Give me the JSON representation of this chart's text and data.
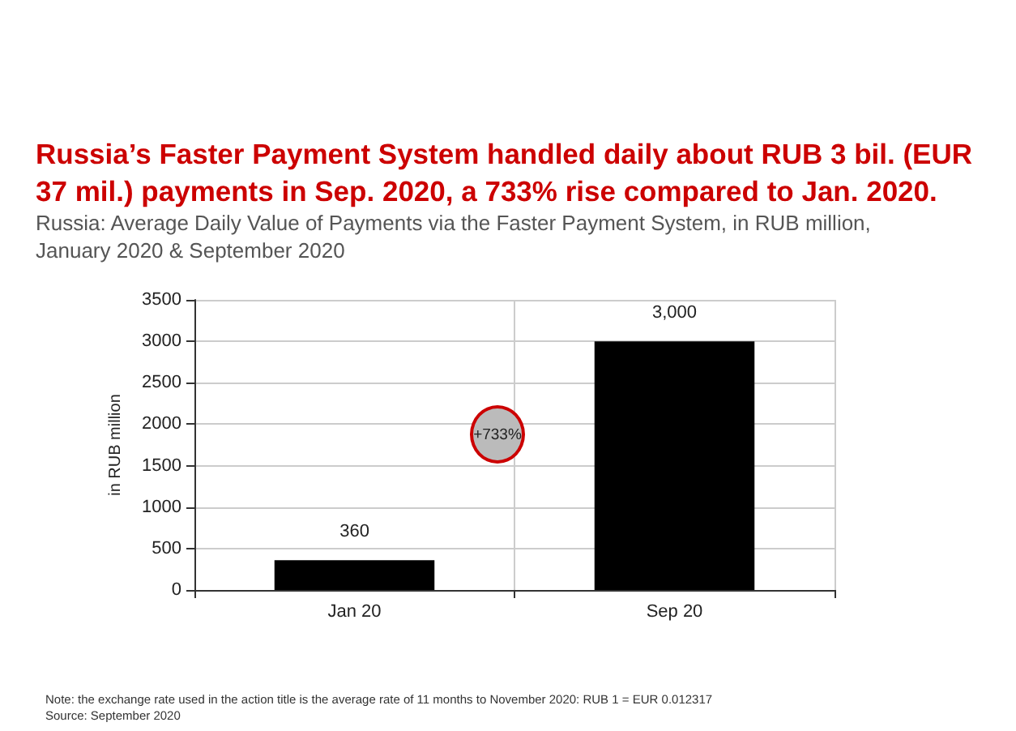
{
  "chart_data": {
    "type": "bar",
    "title": "Russia’s Faster Payment System handled daily about RUB 3 bil. (EUR 37 mil.) payments in Sep. 2020, a 733% rise compared to Jan. 2020.",
    "subtitle": "Russia: Average Daily Value of Payments via the Faster Payment System, in RUB million, January 2020 & September 2020",
    "ylabel": "in RUB million",
    "categories": [
      "Jan 20",
      "Sep 20"
    ],
    "values": [
      360,
      3000
    ],
    "value_labels": [
      "360",
      "3,000"
    ],
    "color": "#000000",
    "ylim": [
      0,
      3500
    ],
    "yticks": [
      0,
      500,
      1000,
      1500,
      2000,
      2500,
      3000,
      3500
    ],
    "grid": true,
    "annotations": [
      "+733%",
      "Note: the exchange rate used in the action title is the average rate of 11 months to November 2020: RUB 1 = EUR 0.012317",
      "Source: September 2020"
    ]
  }
}
